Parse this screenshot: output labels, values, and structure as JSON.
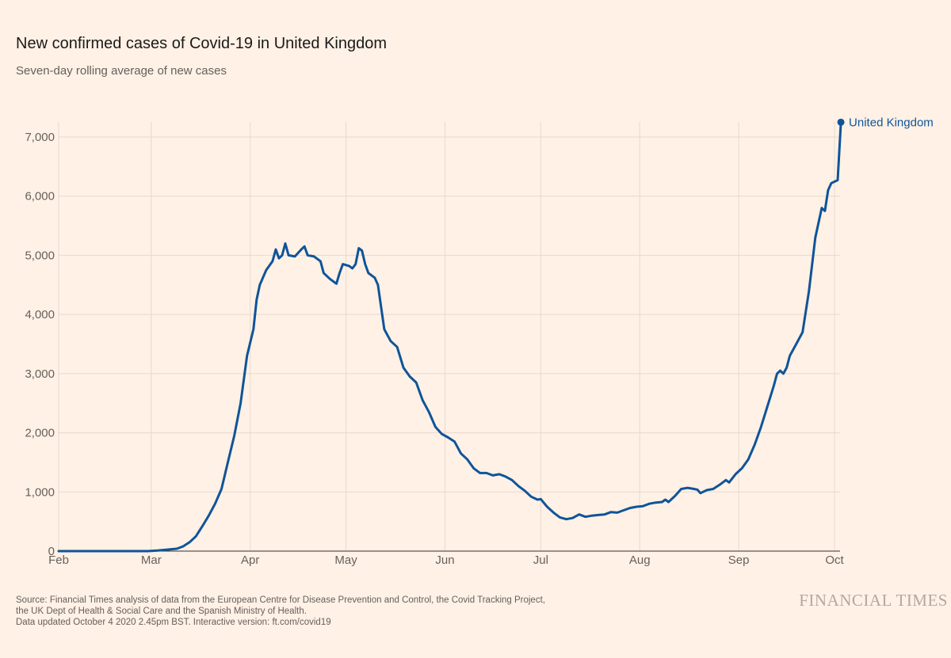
{
  "title": "New confirmed cases of Covid-19 in United Kingdom",
  "subtitle": "Seven-day rolling average of new cases",
  "footer": {
    "line1": "Source: Financial Times analysis of data from the European Centre for Disease Prevention and Control, the Covid Tracking Project,",
    "line2": "the UK Dept of Health & Social Care and the Spanish Ministry of Health.",
    "line3": "Data updated October 4 2020 2.45pm BST. Interactive version: ft.com/covid19"
  },
  "logo": "FINANCIAL TIMES",
  "colors": {
    "background": "#fff1e5",
    "series": "#0f5499"
  },
  "chart_data": {
    "type": "line",
    "title": "New confirmed cases of Covid-19 in United Kingdom",
    "subtitle": "Seven-day rolling average of new cases",
    "xlabel": "",
    "ylabel": "",
    "ylim": [
      0,
      7000
    ],
    "y_ticks": [
      0,
      1000,
      2000,
      3000,
      4000,
      5000,
      6000,
      7000
    ],
    "y_tick_labels": [
      "0",
      "1,000",
      "2,000",
      "3,000",
      "4,000",
      "5,000",
      "6,000",
      "7,000"
    ],
    "x_ticks": [
      "2020-02-01",
      "2020-03-01",
      "2020-04-01",
      "2020-05-01",
      "2020-06-01",
      "2020-07-01",
      "2020-08-01",
      "2020-09-01",
      "2020-10-01"
    ],
    "x_tick_labels": [
      "Feb",
      "Mar",
      "Apr",
      "May",
      "Jun",
      "Jul",
      "Aug",
      "Sep",
      "Oct"
    ],
    "grid": true,
    "legend": "end-of-line label",
    "series": [
      {
        "name": "United Kingdom",
        "color": "#0f5499",
        "end_marker": true,
        "points": [
          [
            "2020-02-01",
            0
          ],
          [
            "2020-02-29",
            0
          ],
          [
            "2020-03-03",
            10
          ],
          [
            "2020-03-05",
            20
          ],
          [
            "2020-03-07",
            30
          ],
          [
            "2020-03-09",
            40
          ],
          [
            "2020-03-11",
            80
          ],
          [
            "2020-03-13",
            150
          ],
          [
            "2020-03-15",
            250
          ],
          [
            "2020-03-17",
            420
          ],
          [
            "2020-03-19",
            600
          ],
          [
            "2020-03-21",
            800
          ],
          [
            "2020-03-23",
            1050
          ],
          [
            "2020-03-25",
            1500
          ],
          [
            "2020-03-27",
            1950
          ],
          [
            "2020-03-29",
            2500
          ],
          [
            "2020-03-31",
            3300
          ],
          [
            "2020-04-02",
            3750
          ],
          [
            "2020-04-03",
            4250
          ],
          [
            "2020-04-04",
            4500
          ],
          [
            "2020-04-06",
            4750
          ],
          [
            "2020-04-08",
            4900
          ],
          [
            "2020-04-09",
            5100
          ],
          [
            "2020-04-10",
            4950
          ],
          [
            "2020-04-11",
            5000
          ],
          [
            "2020-04-12",
            5200
          ],
          [
            "2020-04-13",
            5000
          ],
          [
            "2020-04-15",
            4980
          ],
          [
            "2020-04-17",
            5100
          ],
          [
            "2020-04-18",
            5150
          ],
          [
            "2020-04-19",
            5000
          ],
          [
            "2020-04-21",
            4980
          ],
          [
            "2020-04-23",
            4900
          ],
          [
            "2020-04-24",
            4700
          ],
          [
            "2020-04-26",
            4600
          ],
          [
            "2020-04-28",
            4520
          ],
          [
            "2020-04-29",
            4700
          ],
          [
            "2020-04-30",
            4850
          ],
          [
            "2020-05-02",
            4820
          ],
          [
            "2020-05-03",
            4780
          ],
          [
            "2020-05-04",
            4850
          ],
          [
            "2020-05-05",
            5120
          ],
          [
            "2020-05-06",
            5080
          ],
          [
            "2020-05-07",
            4850
          ],
          [
            "2020-05-08",
            4700
          ],
          [
            "2020-05-10",
            4620
          ],
          [
            "2020-05-11",
            4500
          ],
          [
            "2020-05-13",
            3750
          ],
          [
            "2020-05-15",
            3550
          ],
          [
            "2020-05-17",
            3450
          ],
          [
            "2020-05-19",
            3100
          ],
          [
            "2020-05-21",
            2950
          ],
          [
            "2020-05-23",
            2850
          ],
          [
            "2020-05-25",
            2550
          ],
          [
            "2020-05-27",
            2350
          ],
          [
            "2020-05-29",
            2100
          ],
          [
            "2020-05-31",
            1980
          ],
          [
            "2020-06-02",
            1920
          ],
          [
            "2020-06-04",
            1850
          ],
          [
            "2020-06-06",
            1650
          ],
          [
            "2020-06-08",
            1550
          ],
          [
            "2020-06-10",
            1400
          ],
          [
            "2020-06-12",
            1320
          ],
          [
            "2020-06-14",
            1320
          ],
          [
            "2020-06-16",
            1280
          ],
          [
            "2020-06-18",
            1300
          ],
          [
            "2020-06-20",
            1260
          ],
          [
            "2020-06-22",
            1200
          ],
          [
            "2020-06-24",
            1100
          ],
          [
            "2020-06-26",
            1020
          ],
          [
            "2020-06-28",
            920
          ],
          [
            "2020-06-30",
            870
          ],
          [
            "2020-07-01",
            880
          ],
          [
            "2020-07-03",
            750
          ],
          [
            "2020-07-05",
            650
          ],
          [
            "2020-07-07",
            570
          ],
          [
            "2020-07-09",
            540
          ],
          [
            "2020-07-11",
            560
          ],
          [
            "2020-07-13",
            620
          ],
          [
            "2020-07-15",
            580
          ],
          [
            "2020-07-17",
            600
          ],
          [
            "2020-07-19",
            610
          ],
          [
            "2020-07-21",
            620
          ],
          [
            "2020-07-23",
            660
          ],
          [
            "2020-07-25",
            650
          ],
          [
            "2020-07-27",
            690
          ],
          [
            "2020-07-29",
            730
          ],
          [
            "2020-07-31",
            750
          ],
          [
            "2020-08-02",
            760
          ],
          [
            "2020-08-04",
            800
          ],
          [
            "2020-08-06",
            820
          ],
          [
            "2020-08-08",
            830
          ],
          [
            "2020-08-09",
            870
          ],
          [
            "2020-08-10",
            830
          ],
          [
            "2020-08-12",
            930
          ],
          [
            "2020-08-14",
            1050
          ],
          [
            "2020-08-16",
            1070
          ],
          [
            "2020-08-18",
            1050
          ],
          [
            "2020-08-19",
            1040
          ],
          [
            "2020-08-20",
            980
          ],
          [
            "2020-08-22",
            1030
          ],
          [
            "2020-08-24",
            1050
          ],
          [
            "2020-08-26",
            1120
          ],
          [
            "2020-08-28",
            1200
          ],
          [
            "2020-08-29",
            1160
          ],
          [
            "2020-08-31",
            1300
          ],
          [
            "2020-09-02",
            1400
          ],
          [
            "2020-09-04",
            1550
          ],
          [
            "2020-09-06",
            1800
          ],
          [
            "2020-09-08",
            2100
          ],
          [
            "2020-09-10",
            2450
          ],
          [
            "2020-09-12",
            2800
          ],
          [
            "2020-09-13",
            3000
          ],
          [
            "2020-09-14",
            3050
          ],
          [
            "2020-09-15",
            3000
          ],
          [
            "2020-09-16",
            3100
          ],
          [
            "2020-09-17",
            3300
          ],
          [
            "2020-09-19",
            3500
          ],
          [
            "2020-09-21",
            3700
          ],
          [
            "2020-09-23",
            4400
          ],
          [
            "2020-09-25",
            5300
          ],
          [
            "2020-09-27",
            5800
          ],
          [
            "2020-09-28",
            5750
          ],
          [
            "2020-09-29",
            6100
          ],
          [
            "2020-09-30",
            6220
          ],
          [
            "2020-10-02",
            6270
          ],
          [
            "2020-10-03",
            7250
          ]
        ]
      }
    ]
  }
}
